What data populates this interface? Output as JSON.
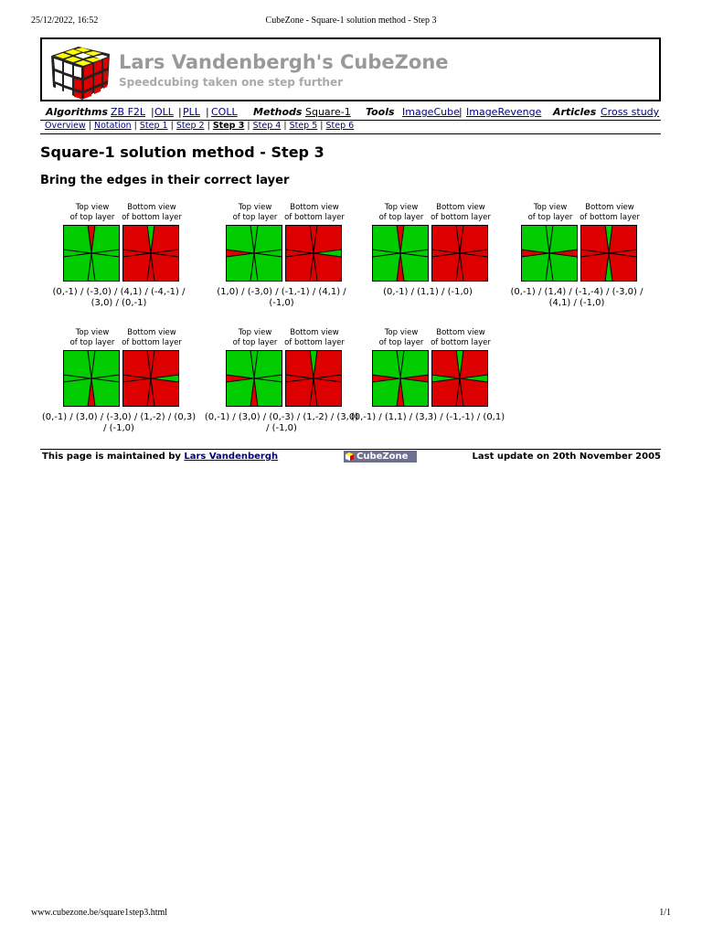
{
  "print_header": {
    "date": "25/12/2022, 16:52",
    "title": "CubeZone - Square-1 solution method - Step 3"
  },
  "banner": {
    "title": "Lars Vandenbergh's CubeZone",
    "tagline": "Speedcubing taken one step further"
  },
  "nav": {
    "algorithms_label": "Algorithms",
    "algorithms": [
      "ZB F2L",
      "OLL",
      "PLL",
      "COLL"
    ],
    "methods_label": "Methods",
    "methods_current": "Square-1",
    "tools_label": "Tools",
    "tools": [
      "ImageCube",
      "ImageRevenge"
    ],
    "articles_label": "Articles",
    "articles": [
      "Cross study"
    ]
  },
  "subnav": {
    "items": [
      "Overview",
      "Notation",
      "Step 1",
      "Step 2",
      "Step 3",
      "Step 4",
      "Step 5",
      "Step 6"
    ],
    "current": "Step 3"
  },
  "page_title": "Square-1 solution method - Step 3",
  "subtitle": "Bring the edges in their correct layer",
  "view_labels": {
    "top": [
      "Top view",
      "of top layer"
    ],
    "bottom": [
      "Bottom view",
      "of bottom layer"
    ]
  },
  "colors": {
    "green": "#00cc00",
    "red": "#dd0000",
    "line": "#000000"
  },
  "cases": [
    {
      "alg": "(0,-1) / (-3,0) / (4,1) / (-4,-1) / (3,0) / (0,-1)",
      "top_red": [
        "N"
      ],
      "bottom_green": [
        "N"
      ]
    },
    {
      "alg": "(1,0) / (-3,0) / (-1,-1) / (4,1) / (-1,0)",
      "top_red": [
        "W"
      ],
      "bottom_green": [
        "E"
      ]
    },
    {
      "alg": "(0,-1) / (1,1) / (-1,0)",
      "top_red": [
        "N",
        "S"
      ],
      "bottom_green": []
    },
    {
      "alg": "(0,-1) / (1,4) / (-1,-4) / (-3,0) / (4,1) / (-1,0)",
      "top_red": [
        "W",
        "E"
      ],
      "bottom_green": [
        "N",
        "S"
      ]
    },
    {
      "alg": "(0,-1) / (3,0) / (-3,0) / (1,-2) / (0,3) / (-1,0)",
      "top_red": [
        "S"
      ],
      "bottom_green": [
        "E"
      ]
    },
    {
      "alg": "(0,-1) / (3,0) / (0,-3) / (1,-2) / (3,0) / (-1,0)",
      "top_red": [
        "W",
        "S"
      ],
      "bottom_green": [
        "N"
      ]
    },
    {
      "alg": "(0,-1) / (1,1) / (3,3) / (-1,-1) / (0,1)",
      "top_red": [
        "W",
        "E",
        "S"
      ],
      "bottom_green": [
        "W",
        "E",
        "N"
      ]
    }
  ],
  "footer": {
    "maintained_prefix": "This page is maintained by",
    "maintainer": "Lars Vandenbergh",
    "badge": "CubeZone",
    "last_update": "Last update on 20th November 2005"
  },
  "print_footer": {
    "url": "www.cubezone.be/square1step3.html",
    "page": "1/1"
  }
}
